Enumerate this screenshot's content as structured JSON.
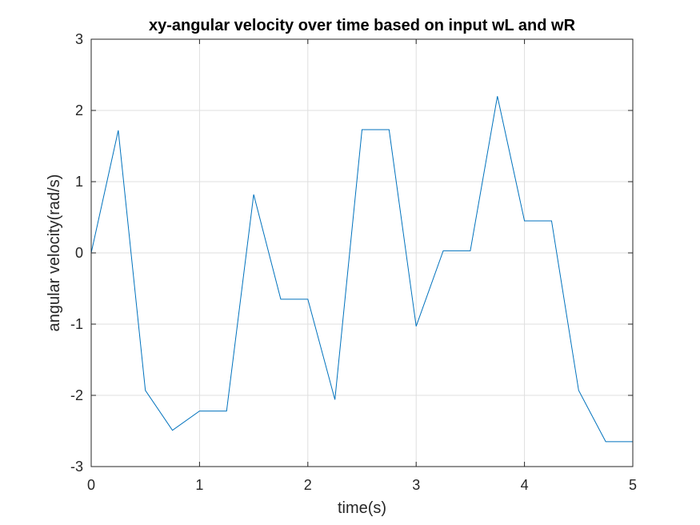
{
  "chart_data": {
    "type": "line",
    "title": "xy-angular velocity over time based on input wL and wR",
    "xlabel": "time(s)",
    "ylabel": "angular velocity(rad/s)",
    "xlim": [
      0,
      5
    ],
    "ylim": [
      -3,
      3
    ],
    "xticks": [
      0,
      1,
      2,
      3,
      4,
      5
    ],
    "yticks": [
      -3,
      -2,
      -1,
      0,
      1,
      2,
      3
    ],
    "grid": true,
    "legend": "none",
    "series": [
      {
        "color": "#0072bd",
        "x": [
          0,
          0.25,
          0.5,
          0.75,
          1.0,
          1.25,
          1.5,
          1.75,
          2.0,
          2.25,
          2.5,
          2.75,
          3.0,
          3.25,
          3.5,
          3.75,
          4.0,
          4.25,
          4.5,
          4.75,
          5.0
        ],
        "y": [
          0,
          1.72,
          -1.93,
          -2.49,
          -2.22,
          -2.22,
          0.82,
          -0.65,
          -0.65,
          -2.06,
          1.73,
          1.73,
          -1.03,
          0.03,
          0.03,
          2.2,
          0.45,
          0.45,
          -1.93,
          -2.65,
          -2.65
        ]
      }
    ]
  }
}
